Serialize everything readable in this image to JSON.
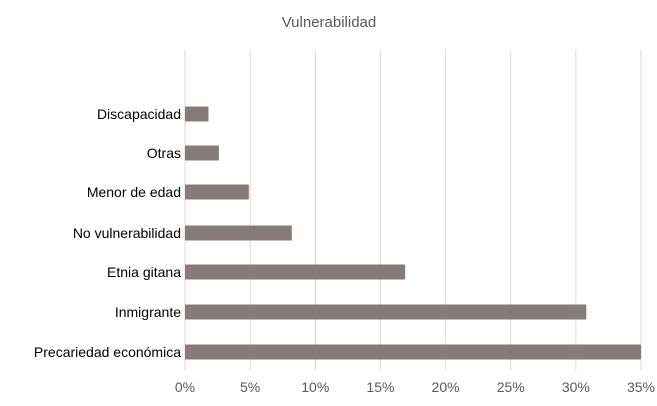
{
  "chart_data": {
    "type": "bar",
    "orientation": "horizontal",
    "title": "Vulnerabilidad",
    "categories": [
      "Discapacidad",
      "Otras",
      "Menor de edad",
      "No vulnerabilidad",
      "Etnia gitana",
      "Inmigrante",
      "Precariedad económica"
    ],
    "values": [
      1.8,
      2.6,
      4.9,
      8.2,
      16.9,
      30.8,
      35.0
    ],
    "xlim": [
      0,
      35
    ],
    "x_ticks": [
      0,
      5,
      10,
      15,
      20,
      25,
      30,
      35
    ],
    "x_tick_labels": [
      "0%",
      "5%",
      "10%",
      "15%",
      "20%",
      "25%",
      "30%",
      "35%"
    ],
    "xlabel": "",
    "ylabel": "",
    "grid": "vertical",
    "legend": "none",
    "colors": {
      "bar": "#857c7a",
      "grid": "#d9d9d9",
      "text": "#000000",
      "title": "#595959",
      "tick_label": "#595959"
    }
  }
}
